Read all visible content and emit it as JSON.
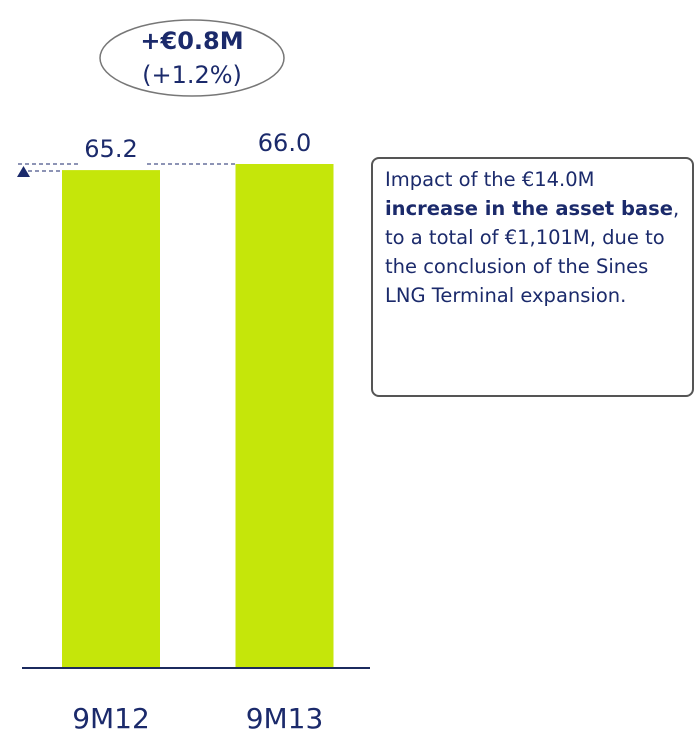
{
  "chart_data": {
    "type": "bar",
    "categories": [
      "9M12",
      "9M13"
    ],
    "values": [
      65.2,
      66.0
    ],
    "value_labels": [
      "65.2",
      "66.0"
    ],
    "color": "#c5e60a",
    "annotations": {
      "change": "+€0.8M",
      "change_pct": "(+1.2%)"
    },
    "note": [
      "Impact of the €14.0M ",
      "increase in the asset base",
      ", to a total of €1,101M, due to the conclusion of the Sines LNG Terminal expansion."
    ]
  }
}
